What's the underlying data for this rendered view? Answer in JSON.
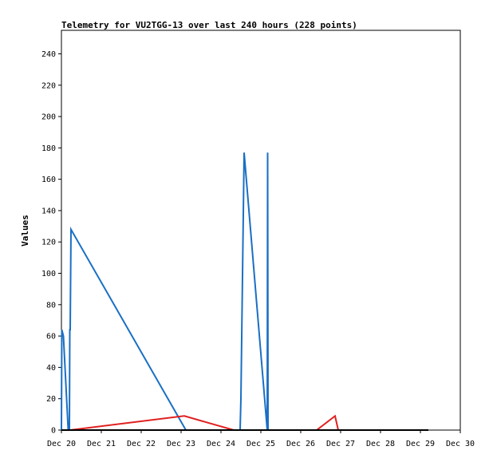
{
  "chart_data": {
    "type": "line",
    "title": "Telemetry for VU2TGG-13 over last 240 hours (228 points)",
    "xlabel": "",
    "ylabel": "Values",
    "ylim": [
      0,
      255
    ],
    "yticks": [
      0,
      20,
      40,
      60,
      80,
      100,
      120,
      140,
      160,
      180,
      200,
      220,
      240
    ],
    "xlim": [
      0,
      10
    ],
    "xtick_labels": [
      "Dec 20",
      "Dec 21",
      "Dec 22",
      "Dec 23",
      "Dec 24",
      "Dec 25",
      "Dec 26",
      "Dec 27",
      "Dec 28",
      "Dec 29",
      "Dec 30"
    ],
    "grid": false,
    "legend": "none",
    "series": [
      {
        "color": "#1a6fc4",
        "points": [
          [
            0.0,
            0
          ],
          [
            0.01,
            64
          ],
          [
            0.05,
            60
          ],
          [
            0.17,
            0
          ],
          [
            0.2,
            0
          ],
          [
            0.21,
            64
          ],
          [
            0.22,
            64
          ],
          [
            0.24,
            128
          ],
          [
            3.12,
            0
          ],
          [
            3.3,
            0
          ],
          [
            4.48,
            0
          ],
          [
            4.5,
            20
          ],
          [
            4.58,
            177
          ],
          [
            5.16,
            0
          ],
          [
            5.17,
            177
          ],
          [
            5.18,
            0
          ],
          [
            9.2,
            0
          ]
        ]
      },
      {
        "color": "#e02020",
        "points": [
          [
            0.22,
            0
          ],
          [
            3.08,
            9
          ],
          [
            4.32,
            0
          ],
          [
            6.4,
            0
          ],
          [
            6.86,
            9
          ],
          [
            6.94,
            0
          ],
          [
            9.2,
            0
          ]
        ]
      },
      {
        "color": "#000000",
        "points": [
          [
            0.0,
            0
          ],
          [
            9.2,
            0
          ]
        ]
      }
    ]
  }
}
